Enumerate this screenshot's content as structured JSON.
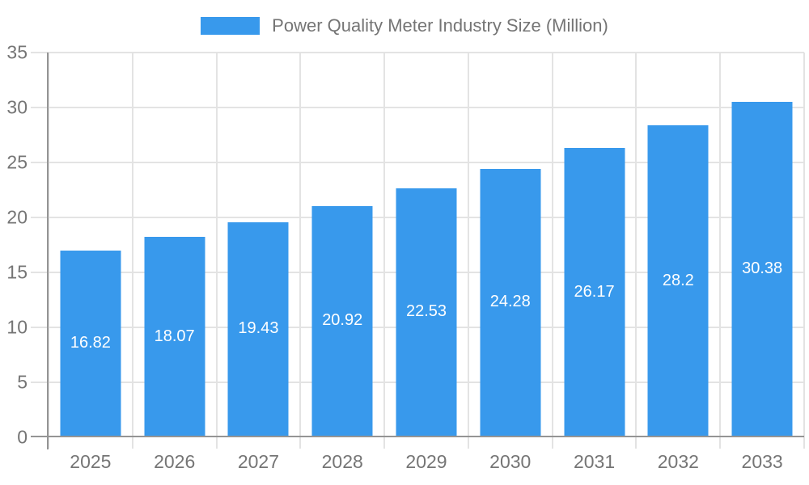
{
  "chart_data": {
    "type": "bar",
    "title": "Power Quality Meter Industry Size (Million)",
    "categories": [
      "2025",
      "2026",
      "2027",
      "2028",
      "2029",
      "2030",
      "2031",
      "2032",
      "2033"
    ],
    "values": [
      16.82,
      18.07,
      19.43,
      20.92,
      22.53,
      24.28,
      26.17,
      28.2,
      30.38
    ],
    "xlabel": "",
    "ylabel": "",
    "ylim": [
      0,
      35
    ],
    "yticks": [
      0,
      5,
      10,
      15,
      20,
      25,
      30,
      35
    ],
    "grid": true,
    "legend_position": "top",
    "bar_color": "#3899EC",
    "value_label_color": "#ffffff",
    "axis_text_color": "#757575",
    "gridline_color": "#e3e3e3",
    "axis_line_color": "#949494"
  },
  "legend": {
    "label": "Power Quality Meter Industry Size (Million)",
    "swatch_color": "#3899EC"
  }
}
